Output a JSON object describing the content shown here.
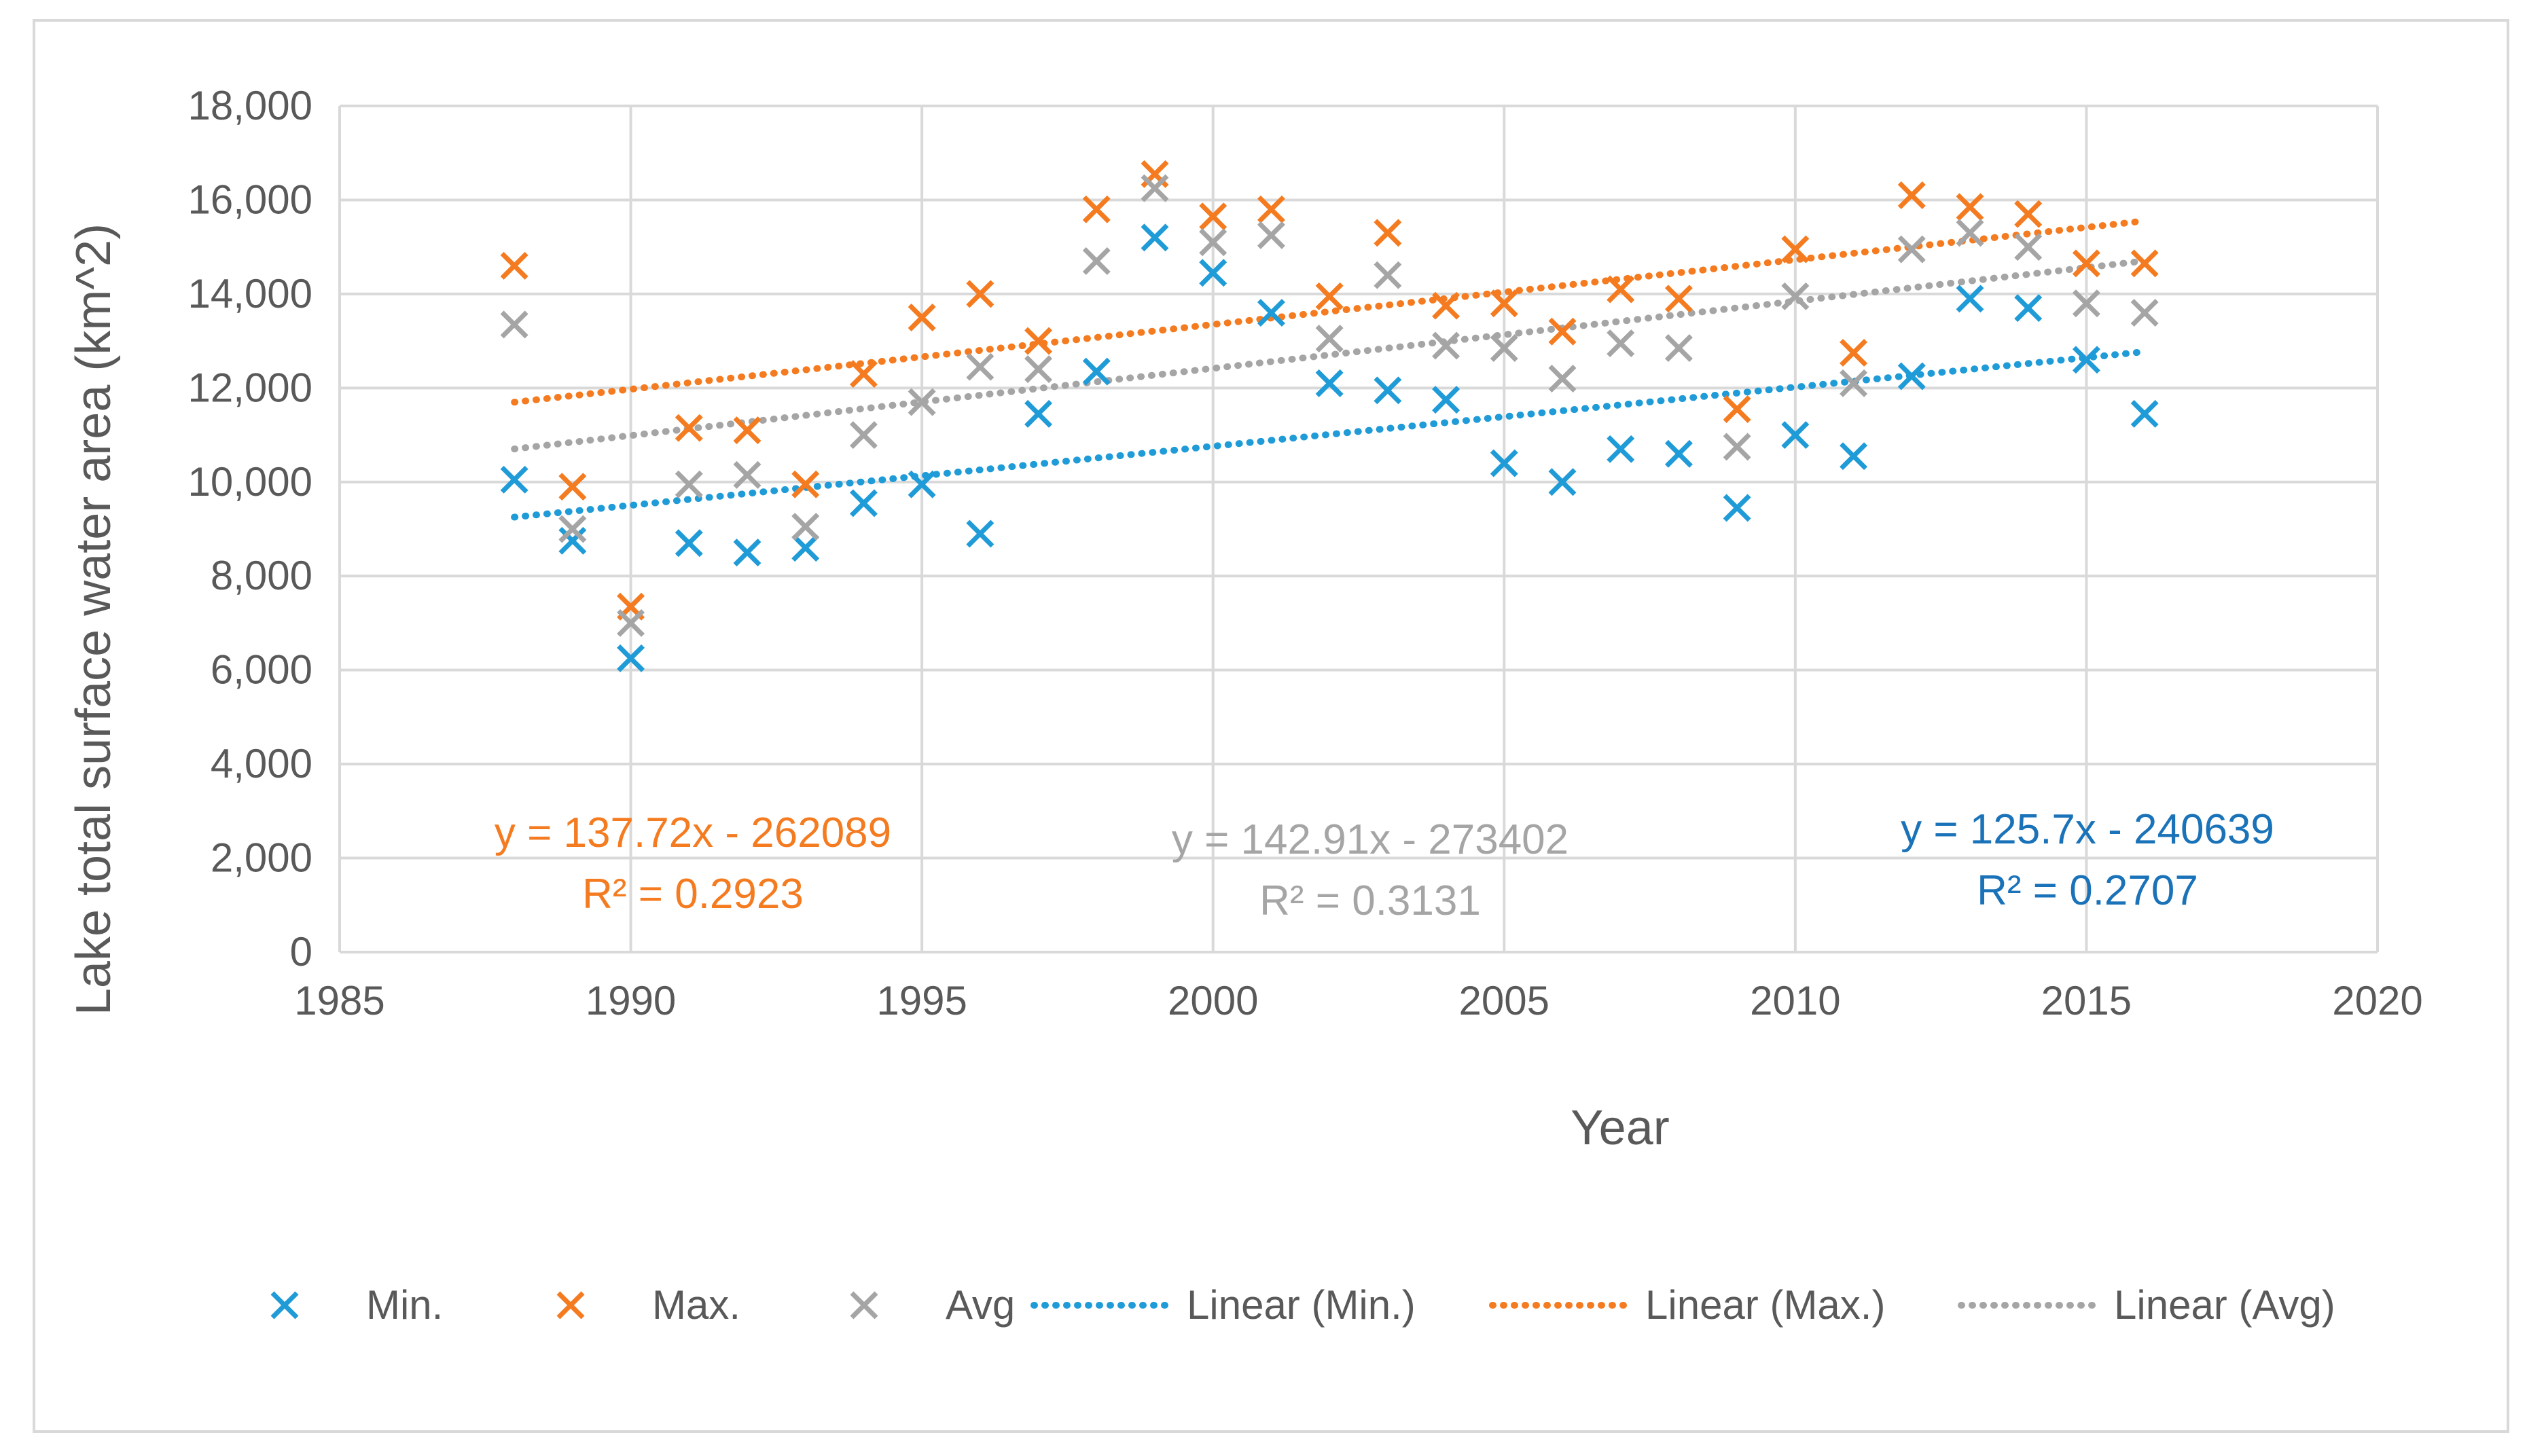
{
  "chart_data": {
    "type": "scatter",
    "title": "",
    "xlabel": "Year",
    "ylabel": "Lake total surface water area (km^2)",
    "xlim": [
      1985,
      2020
    ],
    "ylim": [
      0,
      18000
    ],
    "xticks": [
      1985,
      1990,
      1995,
      2000,
      2005,
      2010,
      2015,
      2020
    ],
    "yticks": [
      0,
      2000,
      4000,
      6000,
      8000,
      10000,
      12000,
      14000,
      16000,
      18000
    ],
    "ytick_labels": [
      "0",
      "2,000",
      "4,000",
      "6,000",
      "8,000",
      "10,000",
      "12,000",
      "14,000",
      "16,000",
      "18,000"
    ],
    "grid": true,
    "legend_position": "bottom",
    "series": [
      {
        "name": "Min.",
        "color": "#1f9bd7",
        "x": [
          1988,
          1989,
          1990,
          1991,
          1992,
          1993,
          1994,
          1995,
          1996,
          1997,
          1998,
          1999,
          2000,
          2001,
          2002,
          2003,
          2004,
          2005,
          2006,
          2007,
          2008,
          2009,
          2010,
          2011,
          2012,
          2013,
          2014,
          2015,
          2016
        ],
        "y": [
          10050,
          8750,
          6250,
          8700,
          8500,
          8600,
          9550,
          9950,
          8900,
          11450,
          12350,
          15200,
          14450,
          13600,
          12100,
          11950,
          11750,
          10400,
          10000,
          10700,
          10600,
          9450,
          11000,
          10550,
          12250,
          13900,
          13700,
          12600,
          11450
        ]
      },
      {
        "name": "Max.",
        "color": "#f47b20",
        "x": [
          1988,
          1989,
          1990,
          1991,
          1992,
          1993,
          1994,
          1995,
          1996,
          1997,
          1998,
          1999,
          2000,
          2001,
          2002,
          2003,
          2004,
          2005,
          2006,
          2007,
          2008,
          2009,
          2010,
          2011,
          2012,
          2013,
          2014,
          2015,
          2016
        ],
        "y": [
          14600,
          9900,
          7350,
          11150,
          11100,
          9950,
          12300,
          13500,
          14000,
          13000,
          15800,
          16550,
          15650,
          15800,
          13950,
          15300,
          13750,
          13800,
          13200,
          14100,
          13900,
          11550,
          14950,
          12750,
          16100,
          15850,
          15700,
          14650,
          14650
        ]
      },
      {
        "name": "Avg",
        "color": "#a5a5a5",
        "x": [
          1988,
          1989,
          1990,
          1991,
          1992,
          1993,
          1994,
          1995,
          1996,
          1997,
          1998,
          1999,
          2000,
          2001,
          2002,
          2003,
          2004,
          2005,
          2006,
          2007,
          2008,
          2009,
          2010,
          2011,
          2012,
          2013,
          2014,
          2015,
          2016
        ],
        "y": [
          13350,
          9000,
          7000,
          9950,
          10150,
          9050,
          11000,
          11700,
          12450,
          12400,
          14700,
          16250,
          15100,
          15250,
          13050,
          14400,
          12900,
          12850,
          12200,
          12950,
          12850,
          10750,
          13950,
          12100,
          14950,
          15300,
          15000,
          13800,
          13600
        ]
      }
    ],
    "trendlines": [
      {
        "name": "Linear (Min.)",
        "color": "#1f9bd7",
        "slope": 125.7,
        "intercept": -240639,
        "x_range": [
          1988,
          2016
        ]
      },
      {
        "name": "Linear (Max.)",
        "color": "#f47b20",
        "slope": 137.72,
        "intercept": -262089,
        "x_range": [
          1988,
          2016
        ]
      },
      {
        "name": "Linear (Avg)",
        "color": "#a5a5a5",
        "slope": 142.91,
        "intercept": -273402,
        "x_range": [
          1988,
          2016
        ]
      }
    ],
    "annotations": [
      {
        "series": "Max.",
        "color": "#f47b20",
        "equation": "y = 137.72x - 262089",
        "r2": "R² = 0.2923"
      },
      {
        "series": "Avg",
        "color": "#a5a5a5",
        "equation": "y = 142.91x - 273402",
        "r2": "R² = 0.3131"
      },
      {
        "series": "Min.",
        "color": "#1a72b8",
        "equation": "y = 125.7x - 240639",
        "r2": "R² = 0.2707"
      }
    ]
  }
}
